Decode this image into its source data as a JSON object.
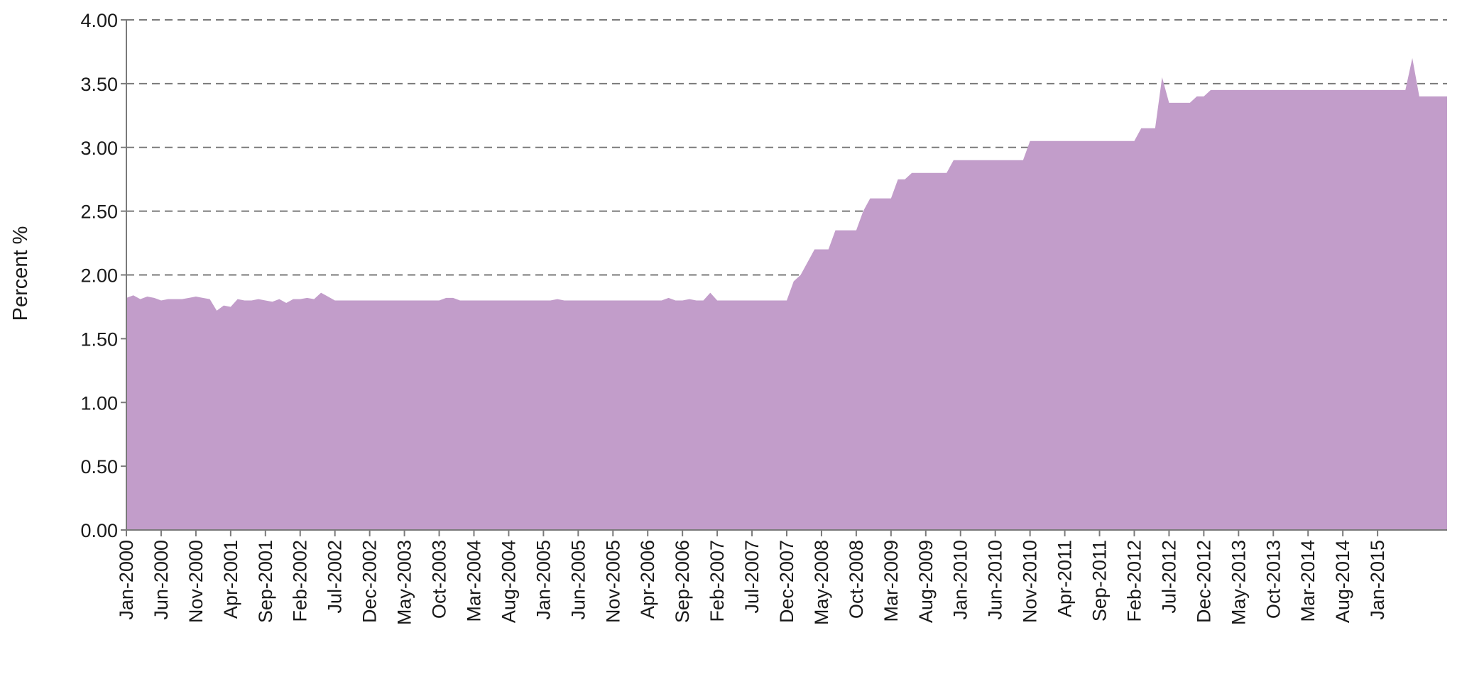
{
  "chart_data": {
    "type": "area",
    "title": "",
    "xlabel": "",
    "ylabel": "Percent %",
    "ylim": [
      0,
      4.0
    ],
    "grid": true,
    "grid_style": "dashed-horizontal",
    "legend": "none",
    "colors": {
      "area": "#c29dca",
      "grid": "#7a7a7a",
      "axis": "#7a7a7a",
      "text": "#1a1a1a"
    },
    "y_ticks": [
      "0.00",
      "0.50",
      "1.00",
      "1.50",
      "2.00",
      "2.50",
      "3.00",
      "3.50",
      "4.00"
    ],
    "x_tick_labels": [
      "Jan-2000",
      "Jun-2000",
      "Nov-2000",
      "Apr-2001",
      "Sep-2001",
      "Feb-2002",
      "Jul-2002",
      "Dec-2002",
      "May-2003",
      "Oct-2003",
      "Mar-2004",
      "Aug-2004",
      "Jan-2005",
      "Jun-2005",
      "Nov-2005",
      "Apr-2006",
      "Sep-2006",
      "Feb-2007",
      "Jul-2007",
      "Dec-2007",
      "May-2008",
      "Oct-2008",
      "Mar-2009",
      "Aug-2009",
      "Jan-2010",
      "Jun-2010",
      "Nov-2010",
      "Apr-2011",
      "Sep-2011",
      "Feb-2012",
      "Jul-2012",
      "Dec-2012",
      "May-2013",
      "Oct-2013",
      "Mar-2014",
      "Aug-2014",
      "Jan-2015"
    ],
    "x_start": "Jan-2000",
    "x_end": "Jul-2015",
    "series": [
      {
        "values": [
          1.82,
          1.84,
          1.81,
          1.83,
          1.82,
          1.8,
          1.81,
          1.81,
          1.81,
          1.82,
          1.83,
          1.82,
          1.81,
          1.72,
          1.76,
          1.75,
          1.81,
          1.8,
          1.8,
          1.81,
          1.8,
          1.79,
          1.81,
          1.78,
          1.81,
          1.81,
          1.82,
          1.81,
          1.86,
          1.83,
          1.8,
          1.8,
          1.8,
          1.8,
          1.8,
          1.8,
          1.8,
          1.8,
          1.8,
          1.8,
          1.8,
          1.8,
          1.8,
          1.8,
          1.8,
          1.8,
          1.82,
          1.82,
          1.8,
          1.8,
          1.8,
          1.8,
          1.8,
          1.8,
          1.8,
          1.8,
          1.8,
          1.8,
          1.8,
          1.8,
          1.8,
          1.8,
          1.81,
          1.8,
          1.8,
          1.8,
          1.8,
          1.8,
          1.8,
          1.8,
          1.8,
          1.8,
          1.8,
          1.8,
          1.8,
          1.8,
          1.8,
          1.8,
          1.82,
          1.8,
          1.8,
          1.81,
          1.8,
          1.8,
          1.86,
          1.8,
          1.8,
          1.8,
          1.8,
          1.8,
          1.8,
          1.8,
          1.8,
          1.8,
          1.8,
          1.8,
          1.95,
          2.0,
          2.1,
          2.2,
          2.2,
          2.2,
          2.35,
          2.35,
          2.35,
          2.35,
          2.5,
          2.6,
          2.6,
          2.6,
          2.6,
          2.75,
          2.75,
          2.8,
          2.8,
          2.8,
          2.8,
          2.8,
          2.8,
          2.9,
          2.9,
          2.9,
          2.9,
          2.9,
          2.9,
          2.9,
          2.9,
          2.9,
          2.9,
          2.9,
          3.05,
          3.05,
          3.05,
          3.05,
          3.05,
          3.05,
          3.05,
          3.05,
          3.05,
          3.05,
          3.05,
          3.05,
          3.05,
          3.05,
          3.05,
          3.05,
          3.15,
          3.15,
          3.15,
          3.55,
          3.35,
          3.35,
          3.35,
          3.35,
          3.4,
          3.4,
          3.45,
          3.45,
          3.45,
          3.45,
          3.45,
          3.45,
          3.45,
          3.45,
          3.45,
          3.45,
          3.45,
          3.45,
          3.45,
          3.45,
          3.45,
          3.45,
          3.45,
          3.45,
          3.45,
          3.45,
          3.45,
          3.45,
          3.45,
          3.45,
          3.45,
          3.45,
          3.45,
          3.45,
          3.45,
          3.7,
          3.4,
          3.4,
          3.4,
          3.4,
          3.4
        ]
      }
    ]
  }
}
